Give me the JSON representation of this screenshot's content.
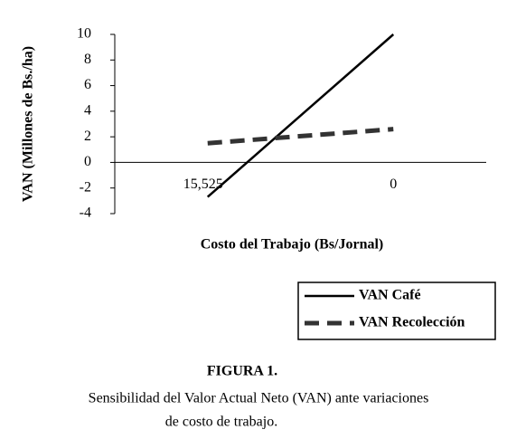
{
  "chart_data": {
    "type": "line",
    "y_label": "VAN (Millones de Bs./ha)",
    "x_label": "Costo del Trabajo (Bs/Jornal)",
    "categories": [
      "15,525",
      "0"
    ],
    "series": [
      {
        "name": "VAN Café",
        "color": "#000000",
        "line_style": "solid",
        "values": [
          -2.7,
          10
        ]
      },
      {
        "name": "VAN Recolección",
        "color": "#333333",
        "line_style": "dashed",
        "values": [
          1.5,
          2.6
        ]
      }
    ],
    "ylim": [
      -4,
      10
    ],
    "yticks": [
      -4,
      -2,
      0,
      2,
      4,
      6,
      8,
      10
    ],
    "legend": "lower right"
  },
  "caption": {
    "figure": "FIGURA 1.",
    "lines": [
      "Sensibilidad del Valor Actual Neto (VAN) ante variaciones",
      "de costo de trabajo."
    ]
  }
}
